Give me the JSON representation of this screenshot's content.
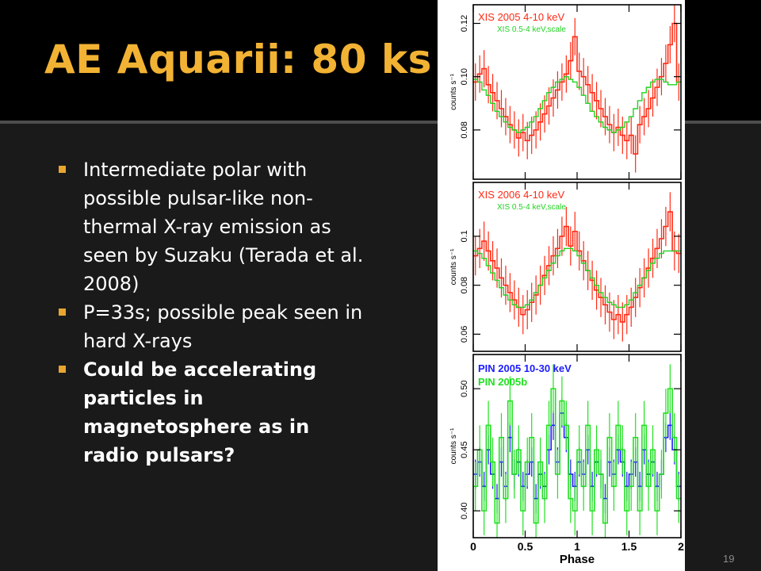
{
  "slide": {
    "title": "AE Aquarii: 80 ks",
    "number": "19",
    "bullets": [
      {
        "text": "Intermediate polar with possible pulsar-like non-thermal X-ray emission as seen by Suzaku (Terada et al. 2008)",
        "bold": false
      },
      {
        "text": "P=33s; possible peak seen in hard X-rays",
        "bold": false
      },
      {
        "text": "Could be accelerating particles in magnetosphere as in radio pulsars?",
        "bold": true
      }
    ],
    "colors": {
      "title": "#f2b233",
      "bullet_marker": "#e8a631",
      "title_bar": "#000000",
      "background": "#1a1a1a"
    }
  },
  "chart_data": [
    {
      "type": "line",
      "xlabel": "",
      "ylabel": "counts s⁻¹",
      "xlim": [
        0,
        2
      ],
      "ylim": [
        0.0615,
        0.127
      ],
      "yticks": [
        0.08,
        0.1,
        0.12
      ],
      "ytick_labels": [
        "0.08",
        "0.10",
        "0.12"
      ],
      "xticks": [
        0,
        0.5,
        1,
        1.5,
        2
      ],
      "xtick_labels": [],
      "legend": "top-left",
      "series": [
        {
          "name": "XIS 2005 4-10 keV",
          "color": "#ff2a14",
          "style": "step-errorbar",
          "values": [
            0.098,
            0.101,
            0.103,
            0.097,
            0.094,
            0.091,
            0.088,
            0.085,
            0.082,
            0.08,
            0.077,
            0.079,
            0.076,
            0.078,
            0.08,
            0.083,
            0.086,
            0.089,
            0.092,
            0.095,
            0.098,
            0.101,
            0.106,
            0.115,
            0.102,
            0.1,
            0.097,
            0.094,
            0.091,
            0.088,
            0.085,
            0.082,
            0.079,
            0.081,
            0.078,
            0.076,
            0.078,
            0.071,
            0.082,
            0.085,
            0.088,
            0.092,
            0.096,
            0.1,
            0.105,
            0.112,
            0.12,
            0.098
          ],
          "errors": [
            0.007,
            0.007,
            0.007,
            0.007,
            0.007,
            0.007,
            0.007,
            0.007,
            0.007,
            0.007,
            0.007,
            0.007,
            0.007,
            0.007,
            0.007,
            0.007,
            0.007,
            0.007,
            0.007,
            0.007,
            0.007,
            0.007,
            0.007,
            0.007,
            0.007,
            0.007,
            0.007,
            0.007,
            0.007,
            0.007,
            0.007,
            0.007,
            0.007,
            0.007,
            0.007,
            0.007,
            0.007,
            0.007,
            0.007,
            0.007,
            0.007,
            0.007,
            0.007,
            0.007,
            0.007,
            0.007,
            0.007,
            0.007
          ]
        },
        {
          "name": "XIS 0.5-4 keV,scale",
          "color": "#21d321",
          "style": "step",
          "values": [
            0.099,
            0.098,
            0.095,
            0.093,
            0.09,
            0.087,
            0.085,
            0.083,
            0.081,
            0.08,
            0.079,
            0.08,
            0.081,
            0.083,
            0.085,
            0.088,
            0.091,
            0.094,
            0.096,
            0.098,
            0.099,
            0.1,
            0.099,
            0.098,
            0.096,
            0.093,
            0.09,
            0.087,
            0.085,
            0.083,
            0.081,
            0.08,
            0.079,
            0.08,
            0.081,
            0.083,
            0.085,
            0.088,
            0.091,
            0.094,
            0.096,
            0.098,
            0.099,
            0.099,
            0.098,
            0.097,
            0.097,
            0.098
          ]
        }
      ]
    },
    {
      "type": "line",
      "xlabel": "",
      "ylabel": "counts s⁻¹",
      "xlim": [
        0,
        2
      ],
      "ylim": [
        0.053,
        0.122
      ],
      "yticks": [
        0.06,
        0.08,
        0.1
      ],
      "ytick_labels": [
        "0.06",
        "0.08",
        "0.1"
      ],
      "xticks": [
        0,
        0.5,
        1,
        1.5,
        2
      ],
      "xtick_labels": [],
      "legend": "top-left",
      "series": [
        {
          "name": "XIS 2006 4-10 keV",
          "color": "#ff2a14",
          "style": "step-errorbar",
          "values": [
            0.092,
            0.095,
            0.098,
            0.094,
            0.09,
            0.087,
            0.083,
            0.08,
            0.077,
            0.074,
            0.071,
            0.068,
            0.07,
            0.073,
            0.076,
            0.08,
            0.084,
            0.088,
            0.092,
            0.095,
            0.1,
            0.104,
            0.096,
            0.102,
            0.094,
            0.09,
            0.086,
            0.082,
            0.078,
            0.075,
            0.072,
            0.069,
            0.066,
            0.068,
            0.065,
            0.068,
            0.071,
            0.075,
            0.079,
            0.083,
            0.087,
            0.091,
            0.095,
            0.099,
            0.104,
            0.11,
            0.094,
            0.093
          ],
          "errors": [
            0.008,
            0.008,
            0.008,
            0.008,
            0.008,
            0.008,
            0.008,
            0.008,
            0.008,
            0.008,
            0.008,
            0.008,
            0.008,
            0.008,
            0.008,
            0.008,
            0.008,
            0.008,
            0.008,
            0.008,
            0.008,
            0.008,
            0.008,
            0.008,
            0.008,
            0.008,
            0.008,
            0.008,
            0.008,
            0.008,
            0.008,
            0.008,
            0.008,
            0.008,
            0.008,
            0.008,
            0.008,
            0.008,
            0.008,
            0.008,
            0.008,
            0.008,
            0.008,
            0.008,
            0.008,
            0.008,
            0.008,
            0.008
          ]
        },
        {
          "name": "XIS 0.5-4 keV,scale",
          "color": "#21d321",
          "style": "step",
          "values": [
            0.094,
            0.093,
            0.091,
            0.088,
            0.085,
            0.082,
            0.079,
            0.076,
            0.074,
            0.072,
            0.071,
            0.071,
            0.072,
            0.074,
            0.077,
            0.08,
            0.083,
            0.086,
            0.089,
            0.092,
            0.094,
            0.095,
            0.095,
            0.094,
            0.092,
            0.089,
            0.086,
            0.083,
            0.08,
            0.077,
            0.075,
            0.073,
            0.072,
            0.071,
            0.071,
            0.072,
            0.074,
            0.077,
            0.08,
            0.083,
            0.086,
            0.089,
            0.091,
            0.093,
            0.094,
            0.094,
            0.094,
            0.094
          ]
        }
      ]
    },
    {
      "type": "line",
      "xlabel": "Phase",
      "ylabel": "counts s⁻¹",
      "xlim": [
        0,
        2
      ],
      "ylim": [
        0.378,
        0.528
      ],
      "yticks": [
        0.4,
        0.45,
        0.5
      ],
      "ytick_labels": [
        "0.40",
        "0.45",
        "0.50"
      ],
      "xticks": [
        0,
        0.5,
        1,
        1.5,
        2
      ],
      "xtick_labels": [
        "0",
        "0.5",
        "1",
        "1.5",
        "2"
      ],
      "legend": "top-left",
      "series": [
        {
          "name": "PIN 2005 10-30 keV",
          "color": "#1c1cff",
          "style": "step-errorbar",
          "values": [
            0.43,
            0.44,
            0.42,
            0.45,
            0.43,
            0.41,
            0.44,
            0.42,
            0.46,
            0.43,
            0.44,
            0.42,
            0.43,
            0.44,
            0.41,
            0.43,
            0.42,
            0.45,
            0.47,
            0.44,
            0.48,
            0.46,
            0.43,
            0.42,
            0.44,
            0.43,
            0.45,
            0.42,
            0.44,
            0.43,
            0.41,
            0.44,
            0.43,
            0.45,
            0.44,
            0.42,
            0.43,
            0.44,
            0.42,
            0.45,
            0.43,
            0.44,
            0.42,
            0.43,
            0.46,
            0.47,
            0.45,
            0.42
          ],
          "errors": [
            0.012,
            0.012,
            0.012,
            0.012,
            0.012,
            0.012,
            0.012,
            0.012,
            0.012,
            0.012,
            0.012,
            0.012,
            0.012,
            0.012,
            0.012,
            0.012,
            0.012,
            0.012,
            0.012,
            0.012,
            0.012,
            0.012,
            0.012,
            0.012,
            0.012,
            0.012,
            0.012,
            0.012,
            0.012,
            0.012,
            0.012,
            0.012,
            0.012,
            0.012,
            0.012,
            0.012,
            0.012,
            0.012,
            0.012,
            0.012,
            0.012,
            0.012,
            0.012,
            0.012,
            0.012,
            0.012,
            0.012,
            0.012
          ]
        },
        {
          "name": "PIN 2005b",
          "color": "#21e121",
          "style": "step-errorbar",
          "values": [
            0.42,
            0.45,
            0.4,
            0.47,
            0.44,
            0.39,
            0.46,
            0.41,
            0.49,
            0.43,
            0.45,
            0.4,
            0.44,
            0.46,
            0.39,
            0.44,
            0.41,
            0.47,
            0.5,
            0.43,
            0.49,
            0.47,
            0.41,
            0.4,
            0.45,
            0.42,
            0.47,
            0.4,
            0.45,
            0.43,
            0.39,
            0.46,
            0.42,
            0.47,
            0.45,
            0.4,
            0.42,
            0.46,
            0.4,
            0.47,
            0.42,
            0.45,
            0.4,
            0.43,
            0.48,
            0.5,
            0.46,
            0.41
          ],
          "errors": [
            0.02,
            0.02,
            0.02,
            0.02,
            0.02,
            0.02,
            0.02,
            0.02,
            0.02,
            0.02,
            0.02,
            0.02,
            0.02,
            0.02,
            0.02,
            0.02,
            0.02,
            0.02,
            0.02,
            0.02,
            0.02,
            0.02,
            0.02,
            0.02,
            0.02,
            0.02,
            0.02,
            0.02,
            0.02,
            0.02,
            0.02,
            0.02,
            0.02,
            0.02,
            0.02,
            0.02,
            0.02,
            0.02,
            0.02,
            0.02,
            0.02,
            0.02,
            0.02,
            0.02,
            0.02,
            0.02,
            0.02,
            0.02
          ]
        }
      ]
    }
  ]
}
